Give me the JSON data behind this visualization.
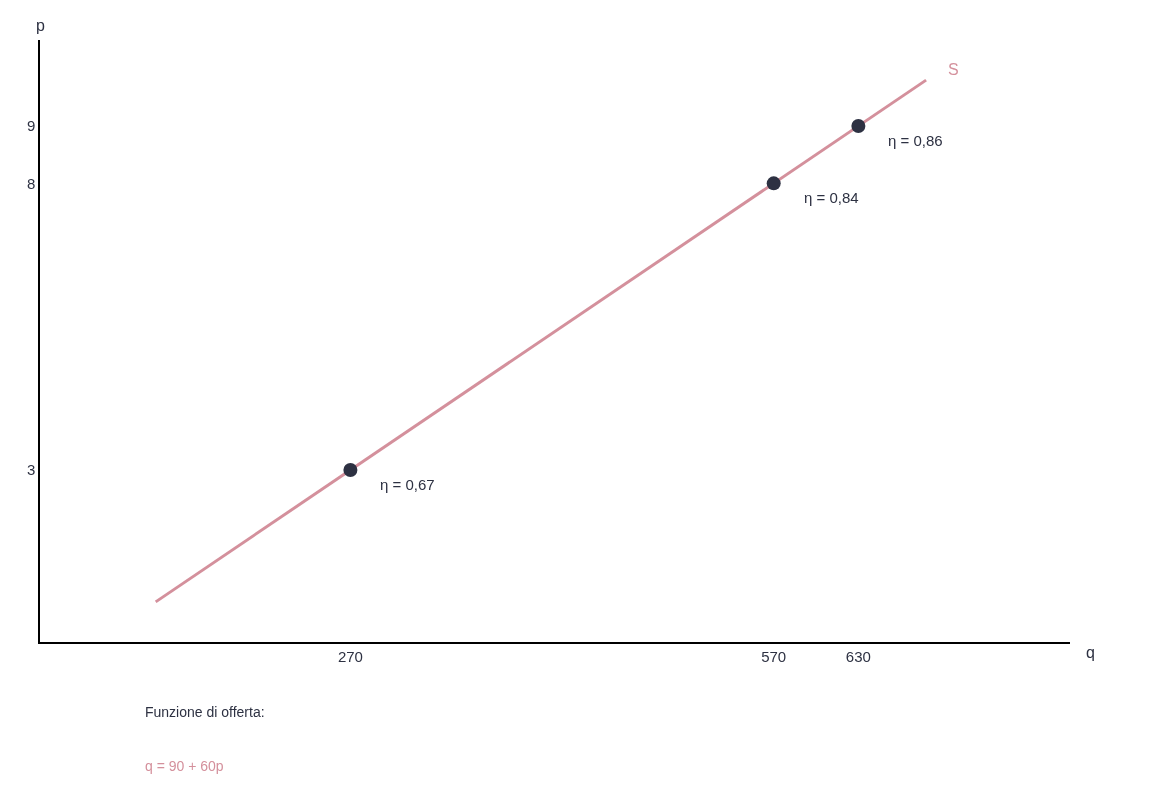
{
  "chart_data": {
    "type": "line",
    "xlabel": "q",
    "ylabel": "p",
    "xlim": [
      50,
      780
    ],
    "ylim": [
      0,
      10.5
    ],
    "xticks": [
      270,
      570,
      630
    ],
    "yticks": [
      3,
      8,
      9
    ],
    "legend": false,
    "series": [
      {
        "name": "S",
        "color": "#d4909c",
        "marker": "none",
        "x": [
          132,
          678
        ],
        "values": [
          0.7,
          9.8
        ]
      },
      {
        "type": "scatter",
        "color": "#2d3142",
        "marker": "circle",
        "x": [
          270,
          570,
          630
        ],
        "values": [
          3,
          8,
          9
        ]
      }
    ],
    "annotations": [
      {
        "text": "η = 0,67",
        "x": 270,
        "y": 3
      },
      {
        "text": "η = 0,84",
        "x": 570,
        "y": 8
      },
      {
        "text": "η = 0,86",
        "x": 630,
        "y": 9
      },
      "Funzione di offerta:",
      "q = 90 + 60p"
    ]
  }
}
